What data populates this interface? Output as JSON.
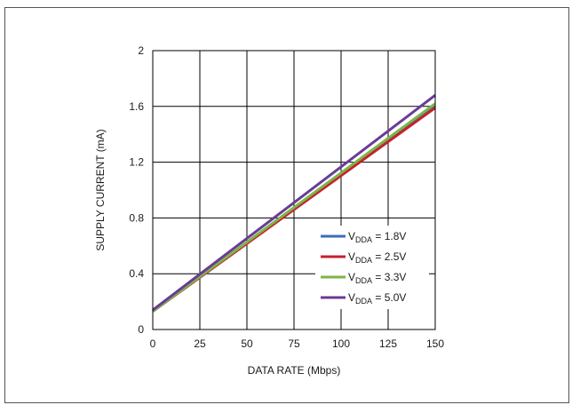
{
  "chart_data": {
    "type": "line",
    "title": "",
    "xlabel": "DATA RATE (Mbps)",
    "ylabel": "SUPPLY CURRENT (mA)",
    "xlim": [
      0,
      150
    ],
    "ylim": [
      0,
      2
    ],
    "x_ticks": [
      0,
      25,
      50,
      75,
      100,
      125,
      150
    ],
    "y_ticks": [
      0,
      0.4,
      0.8,
      1.2,
      1.6,
      2
    ],
    "x_tick_labels": [
      "0",
      "25",
      "50",
      "75",
      "100",
      "125",
      "150"
    ],
    "y_tick_labels": [
      "0",
      "0.4",
      "0.8",
      "1.2",
      "1.6",
      "2"
    ],
    "grid": true,
    "legend_position": "bottom-right",
    "series": [
      {
        "name": "VDDA = 1.8V",
        "label_main": "V",
        "label_sub": "DDA",
        "label_rest": " = 1.8V",
        "color": "#3a6fb5",
        "x": [
          0,
          150
        ],
        "y": [
          0.13,
          1.6
        ]
      },
      {
        "name": "VDDA = 2.5V",
        "label_main": "V",
        "label_sub": "DDA",
        "label_rest": " = 2.5V",
        "color": "#c8202c",
        "x": [
          0,
          150
        ],
        "y": [
          0.13,
          1.59
        ]
      },
      {
        "name": "VDDA = 3.3V",
        "label_main": "V",
        "label_sub": "DDA",
        "label_rest": " = 3.3V",
        "color": "#7ab648",
        "x": [
          0,
          150
        ],
        "y": [
          0.13,
          1.62
        ]
      },
      {
        "name": "VDDA = 5.0V",
        "label_main": "V",
        "label_sub": "DDA",
        "label_rest": " = 5.0V",
        "color": "#6a3b98",
        "x": [
          0,
          150
        ],
        "y": [
          0.14,
          1.68
        ]
      }
    ]
  }
}
